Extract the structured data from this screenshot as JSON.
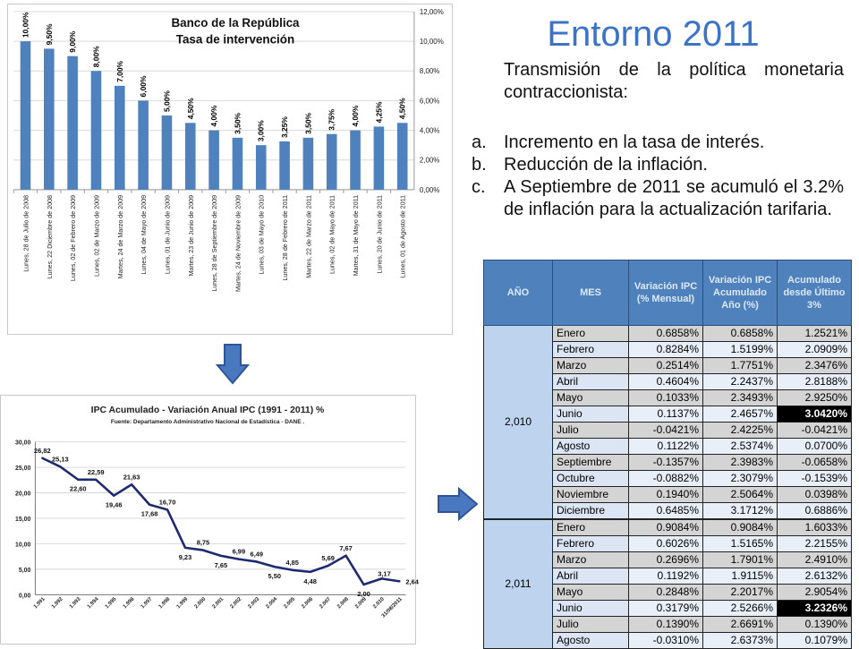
{
  "slide": {
    "title": "Entorno 2011",
    "intro": "Transmisión de la política monetaria contraccionista:",
    "list": [
      {
        "marker": "a.",
        "text": "Incremento en la tasa de interés."
      },
      {
        "marker": "b.",
        "text": "Reducción de la inflación."
      },
      {
        "marker": "c.",
        "text": "A Septiembre de 2011 se acumuló el 3.2% de inflación para la actualización tarifaria."
      }
    ]
  },
  "colors": {
    "title_blue": "#3b74c7",
    "bar_blue": "#4f81bd",
    "line_navy": "#1f2a6e",
    "table_header": "#4f81bd",
    "arrow_blue": "#4a78be"
  },
  "arrows": [
    "down-arrow-icon",
    "right-arrow-icon"
  ],
  "chart_data": [
    {
      "type": "bar",
      "title": "Banco de la República",
      "subtitle": "Tasa de intervención",
      "categories": [
        "Lunes, 28 de Julio de 2008",
        "Lunes, 22 Diciembre de 2008",
        "Lunes, 02 de Febrero de 2009",
        "Lunes, 02 de Marzo de 2009",
        "Martes, 24 de Marzo de 2009",
        "Lunes, 04 de Mayo de 2009",
        "Lunes, 01 de Junio de 2009",
        "Martes, 23 de Junio de 2009",
        "Lunes, 28 de Septiembre de 2009",
        "Martes, 24 de Noviembre de 2009",
        "Lunes, 03 de Mayo de 2010",
        "Lunes, 28 de Febrero de 2011",
        "Martes, 22 de Marzo de 2011",
        "Lunes, 02 de Mayo de 2011",
        "Martes, 31 de Mayo de 2011",
        "Lunes, 20 de Junio de 2011",
        "Lunes, 01 de Agosto de 2011"
      ],
      "values": [
        10.0,
        9.5,
        9.0,
        8.0,
        7.0,
        6.0,
        5.0,
        4.5,
        4.0,
        3.5,
        3.0,
        3.25,
        3.5,
        3.75,
        4.0,
        4.25,
        4.5
      ],
      "data_labels": [
        "10,00%",
        "9,50%",
        "9,00%",
        "8,00%",
        "7,00%",
        "6,00%",
        "5,00%",
        "4,50%",
        "4,00%",
        "3,50%",
        "3,00%",
        "3,25%",
        "3,50%",
        "3,75%",
        "4,00%",
        "4,25%",
        "4,50%"
      ],
      "y_ticks": [
        "0,00%",
        "2,00%",
        "4,00%",
        "6,00%",
        "8,00%",
        "10,00%",
        "12,00%"
      ],
      "ylim": [
        0,
        12
      ],
      "y_axis_side": "right",
      "grid": true
    },
    {
      "type": "line",
      "title": "IPC Acumulado - Variación Anual IPC (1991 - 2011) %",
      "subtitle": "Fuente: Departamento Administrativo Nacional de Estadística - DANE .",
      "categories": [
        "1.991",
        "1.992",
        "1.993",
        "1.994",
        "1.995",
        "1.996",
        "1.997",
        "1.998",
        "1.999",
        "2.000",
        "2.001",
        "2.002",
        "2.003",
        "2.004",
        "2.005",
        "2.006",
        "2.007",
        "2.008",
        "2.009",
        "2.010",
        "31/08/2011"
      ],
      "values": [
        26.82,
        25.13,
        22.6,
        22.59,
        19.46,
        21.63,
        17.68,
        16.7,
        9.23,
        8.75,
        7.65,
        6.99,
        6.49,
        5.5,
        4.85,
        4.48,
        5.69,
        7.67,
        2.0,
        3.17,
        2.64
      ],
      "data_labels": [
        "26,82",
        "25,13",
        "22,60",
        "22,59",
        "19,46",
        "21,63",
        "17,68",
        "16,70",
        "9,23",
        "8,75",
        "7,65",
        "6,99",
        "6,49",
        "5,50",
        "4,85",
        "4,48",
        "5,69",
        "7,67",
        "2,00",
        "3,17",
        "2,64"
      ],
      "y_ticks": [
        "0,00",
        "5,00",
        "10,00",
        "15,00",
        "20,00",
        "25,00",
        "30,00"
      ],
      "ylim": [
        0,
        30
      ],
      "grid": true
    }
  ],
  "table": {
    "headers": [
      "AÑO",
      "MES",
      "Variación IPC (% Mensual)",
      "Variación IPC Acumulado Año (%)",
      "Acumulado desde Último 3%"
    ],
    "groups": [
      {
        "year": "2,010",
        "rows": [
          {
            "mes": "Enero",
            "mensual": "0.6858%",
            "acumulado": "0.6858%",
            "desde": "1.2521%"
          },
          {
            "mes": "Febrero",
            "mensual": "0.8284%",
            "acumulado": "1.5199%",
            "desde": "2.0909%"
          },
          {
            "mes": "Marzo",
            "mensual": "0.2514%",
            "acumulado": "1.7751%",
            "desde": "2.3476%"
          },
          {
            "mes": "Abril",
            "mensual": "0.4604%",
            "acumulado": "2.2437%",
            "desde": "2.8188%"
          },
          {
            "mes": "Mayo",
            "mensual": "0.1033%",
            "acumulado": "2.3493%",
            "desde": "2.9250%"
          },
          {
            "mes": "Junio",
            "mensual": "0.1137%",
            "acumulado": "2.4657%",
            "desde": "3.0420%"
          },
          {
            "mes": "Julio",
            "mensual": "-0.0421%",
            "acumulado": "2.4225%",
            "desde": "-0.0421%"
          },
          {
            "mes": "Agosto",
            "mensual": "0.1122%",
            "acumulado": "2.5374%",
            "desde": "0.0700%"
          },
          {
            "mes": "Septiembre",
            "mensual": "-0.1357%",
            "acumulado": "2.3983%",
            "desde": "-0.0658%"
          },
          {
            "mes": "Octubre",
            "mensual": "-0.0882%",
            "acumulado": "2.3079%",
            "desde": "-0.1539%"
          },
          {
            "mes": "Noviembre",
            "mensual": "0.1940%",
            "acumulado": "2.5064%",
            "desde": "0.0398%"
          },
          {
            "mes": "Diciembre",
            "mensual": "0.6485%",
            "acumulado": "3.1712%",
            "desde": "0.6886%"
          }
        ]
      },
      {
        "year": "2,011",
        "rows": [
          {
            "mes": "Enero",
            "mensual": "0.9084%",
            "acumulado": "0.9084%",
            "desde": "1.6033%"
          },
          {
            "mes": "Febrero",
            "mensual": "0.6026%",
            "acumulado": "1.5165%",
            "desde": "2.2155%"
          },
          {
            "mes": "Marzo",
            "mensual": "0.2696%",
            "acumulado": "1.7901%",
            "desde": "2.4910%"
          },
          {
            "mes": "Abril",
            "mensual": "0.1192%",
            "acumulado": "1.9115%",
            "desde": "2.6132%"
          },
          {
            "mes": "Mayo",
            "mensual": "0.2848%",
            "acumulado": "2.2017%",
            "desde": "2.9054%"
          },
          {
            "mes": "Junio",
            "mensual": "0.3179%",
            "acumulado": "2.5266%",
            "desde": "3.2326%"
          },
          {
            "mes": "Julio",
            "mensual": "0.1390%",
            "acumulado": "2.6691%",
            "desde": "0.1390%"
          },
          {
            "mes": "Agosto",
            "mensual": "-0.0310%",
            "acumulado": "2.6373%",
            "desde": "0.1079%"
          }
        ]
      }
    ],
    "highlighted": [
      "3.0420%",
      "3.2326%"
    ]
  }
}
